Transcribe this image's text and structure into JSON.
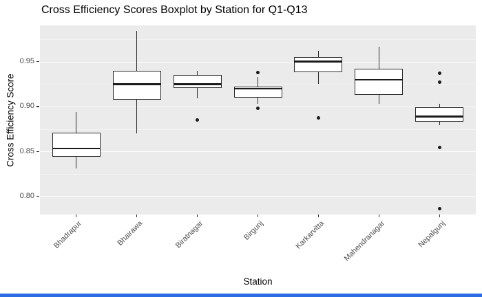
{
  "chart_data": {
    "type": "boxplot",
    "title": "Cross Efficiency Scores Boxplot by Station for Q1-Q13",
    "xlabel": "Station",
    "ylabel": "Cross Efficiency Score",
    "ylim": [
      0.7795,
      0.9905
    ],
    "yticks": [
      0.8,
      0.85,
      0.9,
      0.95
    ],
    "ytick_labels": [
      "0.80",
      "0.85",
      "0.90",
      "0.95"
    ],
    "minor_gridlines": [
      0.825,
      0.875,
      0.925,
      0.975
    ],
    "grid": true,
    "legend": false,
    "categories": [
      "Bhadrapur",
      "Bhairawa",
      "Biratnagar",
      "Birgunj",
      "Karkarvitta",
      "Mahendranagar",
      "Nepalgunj"
    ],
    "series": [
      {
        "name": "Bhadrapur",
        "whisker_low": 0.831,
        "q1": 0.844,
        "median": 0.853,
        "q3": 0.871,
        "whisker_high": 0.894,
        "outliers": []
      },
      {
        "name": "Bhairawa",
        "whisker_low": 0.87,
        "q1": 0.908,
        "median": 0.925,
        "q3": 0.94,
        "whisker_high": 0.984,
        "outliers": []
      },
      {
        "name": "Biratnagar",
        "whisker_low": 0.909,
        "q1": 0.921,
        "median": 0.925,
        "q3": 0.935,
        "whisker_high": 0.94,
        "outliers": [
          0.885
        ]
      },
      {
        "name": "Birgunj",
        "whisker_low": 0.903,
        "q1": 0.91,
        "median": 0.92,
        "q3": 0.9225,
        "whisker_high": 0.933,
        "outliers": [
          0.938,
          0.898
        ]
      },
      {
        "name": "Karkarvitta",
        "whisker_low": 0.925,
        "q1": 0.938,
        "median": 0.95,
        "q3": 0.955,
        "whisker_high": 0.962,
        "outliers": [
          0.887
        ]
      },
      {
        "name": "Mahendranagar",
        "whisker_low": 0.903,
        "q1": 0.913,
        "median": 0.93,
        "q3": 0.942,
        "whisker_high": 0.967,
        "outliers": []
      },
      {
        "name": "Nepalgunj",
        "whisker_low": 0.879,
        "q1": 0.883,
        "median": 0.889,
        "q3": 0.899,
        "whisker_high": 0.903,
        "outliers": [
          0.937,
          0.927,
          0.854,
          0.786
        ]
      }
    ]
  },
  "style": {
    "panel_bg": "#ebebeb",
    "gridline_color": "#ffffff",
    "box_fill": "#ffffff",
    "box_stroke": "#2a2a2a",
    "median_color": "#1a1a1a",
    "outlier_color": "#1c1c1c",
    "axis_text_color": "#4d4d4d",
    "title_color": "#000000",
    "bottom_bar_color": "#2b6be4"
  }
}
